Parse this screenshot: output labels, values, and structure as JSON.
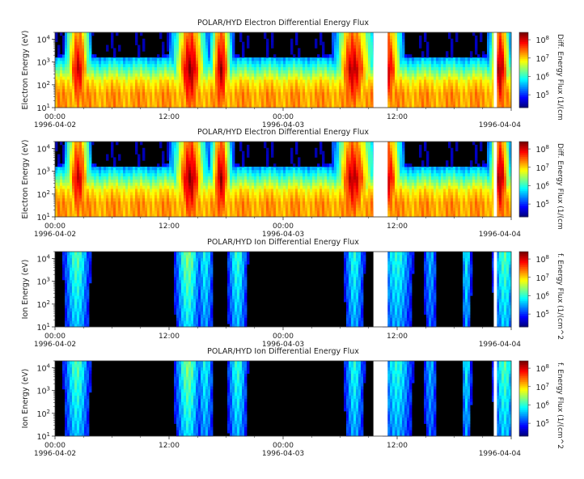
{
  "chart_data": [
    {
      "type": "heatmap",
      "title": "POLAR/HYD  Electron Differential Energy Flux",
      "ylabel": "Electron Energy (eV)",
      "yscale": "log",
      "ylim": [
        10,
        20000
      ],
      "y_ticks": [
        "10^1",
        "10^2",
        "10^3",
        "10^4"
      ],
      "x_ticks": [
        {
          "time": "00:00",
          "date": "1996-04-02"
        },
        {
          "time": "12:00",
          "date": ""
        },
        {
          "time": "00:00",
          "date": "1996-04-03"
        },
        {
          "time": "12:00",
          "date": ""
        },
        {
          "time": "",
          "date": "1996-04-04"
        }
      ],
      "xlim": [
        "1996-04-02 00:00",
        "1996-04-04 00:00"
      ],
      "colorbar": {
        "label": "Diff. Energy Flux (1/(cm",
        "scale": "log",
        "ticks": [
          "10^5",
          "10^6",
          "10^7",
          "10^8"
        ]
      },
      "data_gaps": [
        [
          "1996-04-03 09:30",
          "1996-04-03 11:00"
        ],
        [
          "1996-04-03 22:10",
          "1996-04-03 22:30"
        ]
      ],
      "kind": "electron"
    },
    {
      "type": "heatmap",
      "title": "POLAR/HYD  Electron Differential Energy Flux",
      "ylabel": "Electron Energy (eV)",
      "yscale": "log",
      "ylim": [
        10,
        20000
      ],
      "y_ticks": [
        "10^1",
        "10^2",
        "10^3",
        "10^4"
      ],
      "x_ticks": [
        {
          "time": "00:00",
          "date": "1996-04-02"
        },
        {
          "time": "12:00",
          "date": ""
        },
        {
          "time": "00:00",
          "date": "1996-04-03"
        },
        {
          "time": "12:00",
          "date": ""
        },
        {
          "time": "",
          "date": "1996-04-04"
        }
      ],
      "xlim": [
        "1996-04-02 00:00",
        "1996-04-04 00:00"
      ],
      "colorbar": {
        "label": "Diff. Energy Flux (1/(cm",
        "scale": "log",
        "ticks": [
          "10^5",
          "10^6",
          "10^7",
          "10^8"
        ]
      },
      "data_gaps": [
        [
          "1996-04-03 09:30",
          "1996-04-03 11:00"
        ],
        [
          "1996-04-03 22:10",
          "1996-04-03 22:30"
        ]
      ],
      "kind": "electron"
    },
    {
      "type": "heatmap",
      "title": "POLAR/HYD  Ion Differential Energy Flux",
      "ylabel": "Ion Energy (eV)",
      "yscale": "log",
      "ylim": [
        10,
        20000
      ],
      "y_ticks": [
        "10^1",
        "10^2",
        "10^3",
        "10^4"
      ],
      "x_ticks": [
        {
          "time": "00:00",
          "date": "1996-04-02"
        },
        {
          "time": "12:00",
          "date": ""
        },
        {
          "time": "00:00",
          "date": "1996-04-03"
        },
        {
          "time": "12:00",
          "date": ""
        },
        {
          "time": "",
          "date": "1996-04-04"
        }
      ],
      "xlim": [
        "1996-04-02 00:00",
        "1996-04-04 00:00"
      ],
      "colorbar": {
        "label": "f. Energy Flux (1/(cm^2",
        "scale": "log",
        "ticks": [
          "10^5",
          "10^6",
          "10^7",
          "10^8"
        ]
      },
      "data_gaps": [
        [
          "1996-04-03 09:30",
          "1996-04-03 11:00"
        ],
        [
          "1996-04-03 22:10",
          "1996-04-03 22:30"
        ]
      ],
      "kind": "ion"
    },
    {
      "type": "heatmap",
      "title": "POLAR/HYD  Ion Differential Energy Flux",
      "ylabel": "Ion Energy (eV)",
      "yscale": "log",
      "ylim": [
        10,
        20000
      ],
      "y_ticks": [
        "10^1",
        "10^2",
        "10^3",
        "10^4"
      ],
      "x_ticks": [
        {
          "time": "00:00",
          "date": "1996-04-02"
        },
        {
          "time": "12:00",
          "date": ""
        },
        {
          "time": "00:00",
          "date": "1996-04-03"
        },
        {
          "time": "12:00",
          "date": ""
        },
        {
          "time": "",
          "date": "1996-04-04"
        }
      ],
      "xlim": [
        "1996-04-02 00:00",
        "1996-04-04 00:00"
      ],
      "colorbar": {
        "label": "f. Energy Flux (1/(cm^2",
        "scale": "log",
        "ticks": [
          "10^5",
          "10^6",
          "10^7",
          "10^8"
        ]
      },
      "data_gaps": [
        [
          "1996-04-03 09:30",
          "1996-04-03 11:00"
        ],
        [
          "1996-04-03 22:10",
          "1996-04-03 22:30"
        ]
      ],
      "kind": "ion"
    }
  ]
}
